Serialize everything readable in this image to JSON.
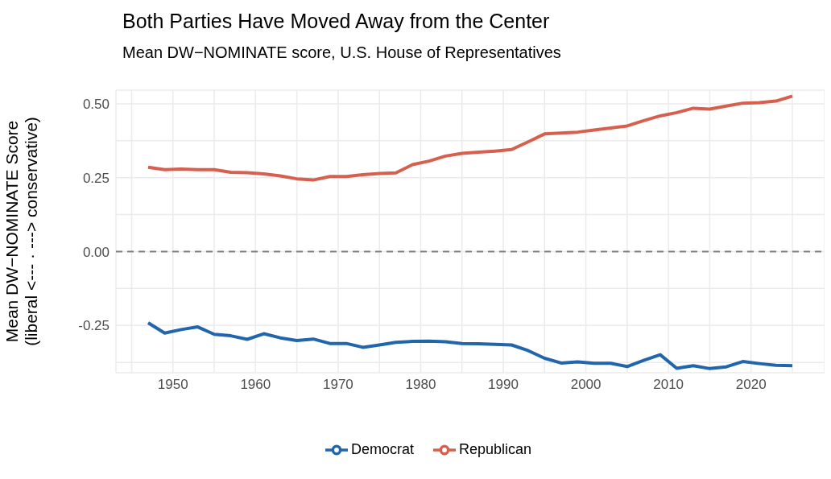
{
  "chart_data": {
    "type": "line",
    "title": "Both Parties Have Moved Away from the Center",
    "subtitle": "Mean DW−NOMINATE score, U.S. House of Representatives",
    "ylabel": "Mean DW−NOMINATE Score\n(liberal <--- · ---> conservative)",
    "x": [
      1947,
      1949,
      1951,
      1953,
      1955,
      1957,
      1959,
      1961,
      1963,
      1965,
      1967,
      1969,
      1971,
      1973,
      1975,
      1977,
      1979,
      1981,
      1983,
      1985,
      1987,
      1989,
      1991,
      1993,
      1995,
      1997,
      1999,
      2001,
      2003,
      2005,
      2007,
      2009,
      2011,
      2013,
      2015,
      2017,
      2019,
      2021,
      2023,
      2025
    ],
    "series": [
      {
        "name": "Democrat",
        "color": "#2166ac",
        "values": [
          -0.241,
          -0.276,
          -0.264,
          -0.255,
          -0.28,
          -0.285,
          -0.297,
          -0.278,
          -0.292,
          -0.301,
          -0.296,
          -0.311,
          -0.311,
          -0.324,
          -0.316,
          -0.307,
          -0.304,
          -0.303,
          -0.305,
          -0.311,
          -0.312,
          -0.314,
          -0.316,
          -0.335,
          -0.361,
          -0.377,
          -0.373,
          -0.378,
          -0.378,
          -0.389,
          -0.368,
          -0.349,
          -0.395,
          -0.386,
          -0.396,
          -0.39,
          -0.372,
          -0.379,
          -0.385,
          -0.386
        ]
      },
      {
        "name": "Republican",
        "color": "#d6604d",
        "values": [
          0.285,
          0.277,
          0.279,
          0.277,
          0.277,
          0.268,
          0.267,
          0.263,
          0.256,
          0.246,
          0.242,
          0.254,
          0.254,
          0.26,
          0.264,
          0.266,
          0.294,
          0.306,
          0.323,
          0.332,
          0.336,
          0.34,
          0.345,
          0.371,
          0.398,
          0.401,
          0.404,
          0.411,
          0.418,
          0.425,
          0.443,
          0.459,
          0.47,
          0.485,
          0.482,
          0.492,
          0.502,
          0.504,
          0.509,
          0.526
        ]
      }
    ],
    "xlim": [
      1943.1,
      2028.9
    ],
    "xticks": [
      {
        "value": 1945,
        "label": null
      },
      1950,
      {
        "value": 1955,
        "label": null
      },
      1960,
      {
        "value": 1965,
        "label": null
      },
      1970,
      {
        "value": 1975,
        "label": null
      },
      1980,
      {
        "value": 1985,
        "label": null
      },
      1990,
      {
        "value": 1995,
        "label": null
      },
      2000,
      {
        "value": 2005,
        "label": null
      },
      2010,
      {
        "value": 2015,
        "label": null
      },
      2020,
      {
        "value": 2025,
        "label": null
      }
    ],
    "ylim": [
      -0.41,
      0.546
    ],
    "yticks": [
      {
        "value": -0.375,
        "label": null
      },
      {
        "value": -0.25,
        "label": "-0.25"
      },
      {
        "value": -0.125,
        "label": null
      },
      {
        "value": 0,
        "label": "0.00"
      },
      {
        "value": 0.125,
        "label": null
      },
      {
        "value": 0.25,
        "label": "0.25"
      },
      {
        "value": 0.375,
        "label": null
      },
      {
        "value": 0.5,
        "label": "0.50"
      }
    ],
    "ref_lines": [
      {
        "axis": "y",
        "value": 0,
        "color": "#808080",
        "line_style": "dashed"
      }
    ],
    "grid": true,
    "legend": "bottom",
    "line_style": "solid",
    "marker": "none"
  }
}
